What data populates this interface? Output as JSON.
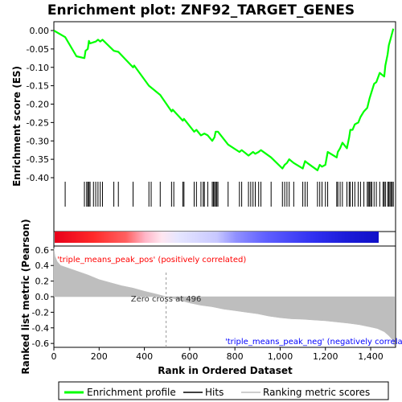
{
  "chart_data": {
    "type": "line",
    "title": "Enrichment plot: ZNF92_TARGET_GENES",
    "xlabel": "Rank in Ordered Dataset",
    "ylabel_top": "Enrichment score (ES)",
    "ylabel_bottom": "Ranked list metric (Pearson)",
    "xlim": [
      0,
      1510
    ],
    "x_ticks": [
      0,
      200,
      400,
      600,
      800,
      1000,
      1200,
      1400
    ],
    "x_tick_labels": [
      "0",
      "200",
      "400",
      "600",
      "800",
      "1,000",
      "1,200",
      "1,400"
    ],
    "es_ylim": [
      -0.4,
      0.0
    ],
    "es_ticks": [
      0.0,
      -0.05,
      -0.1,
      -0.15,
      -0.2,
      -0.25,
      -0.3,
      -0.35,
      -0.4
    ],
    "es_tick_labels": [
      "0.00",
      "-0.05",
      "-0.10",
      "-0.15",
      "-0.20",
      "-0.25",
      "-0.30",
      "-0.35",
      "-0.40"
    ],
    "metric_ylim": [
      -0.65,
      0.65
    ],
    "metric_ticks": [
      0.6,
      0.4,
      0.2,
      0.0,
      -0.2,
      -0.4,
      -0.6
    ],
    "metric_tick_labels": [
      "0.6",
      "0.4",
      "0.2",
      "0.0",
      "-0.2",
      "-0.4",
      "-0.6"
    ],
    "series": [
      {
        "name": "Enrichment profile",
        "color": "#00ff00",
        "x": [
          0,
          50,
          100,
          135,
          140,
          150,
          155,
          160,
          175,
          185,
          195,
          205,
          215,
          265,
          285,
          350,
          355,
          420,
          430,
          470,
          520,
          525,
          570,
          575,
          620,
          630,
          650,
          665,
          680,
          700,
          710,
          715,
          725,
          770,
          820,
          830,
          860,
          870,
          880,
          890,
          905,
          915,
          960,
          1010,
          1020,
          1030,
          1040,
          1060,
          1100,
          1110,
          1120,
          1165,
          1175,
          1185,
          1200,
          1210,
          1250,
          1255,
          1265,
          1275,
          1295,
          1305,
          1310,
          1320,
          1330,
          1345,
          1355,
          1370,
          1385,
          1395,
          1405,
          1415,
          1425,
          1440,
          1460,
          1465,
          1475,
          1480,
          1490,
          1500
        ],
        "y": [
          0.0,
          -0.018,
          -0.07,
          -0.075,
          -0.055,
          -0.05,
          -0.028,
          -0.035,
          -0.032,
          -0.03,
          -0.025,
          -0.03,
          -0.025,
          -0.055,
          -0.058,
          -0.1,
          -0.095,
          -0.15,
          -0.155,
          -0.175,
          -0.22,
          -0.215,
          -0.245,
          -0.24,
          -0.275,
          -0.27,
          -0.285,
          -0.28,
          -0.285,
          -0.3,
          -0.29,
          -0.275,
          -0.275,
          -0.31,
          -0.33,
          -0.325,
          -0.34,
          -0.335,
          -0.33,
          -0.335,
          -0.33,
          -0.325,
          -0.345,
          -0.375,
          -0.365,
          -0.36,
          -0.35,
          -0.36,
          -0.375,
          -0.355,
          -0.36,
          -0.38,
          -0.365,
          -0.37,
          -0.365,
          -0.33,
          -0.345,
          -0.33,
          -0.32,
          -0.305,
          -0.32,
          -0.29,
          -0.27,
          -0.27,
          -0.255,
          -0.25,
          -0.235,
          -0.22,
          -0.21,
          -0.185,
          -0.165,
          -0.145,
          -0.14,
          -0.115,
          -0.125,
          -0.095,
          -0.065,
          -0.04,
          -0.018,
          0.005
        ]
      },
      {
        "name": "Hits",
        "color": "#000000",
        "x": [
          50,
          135,
          145,
          150,
          155,
          160,
          175,
          185,
          195,
          205,
          215,
          265,
          285,
          350,
          420,
          430,
          470,
          520,
          530,
          570,
          575,
          620,
          630,
          650,
          660,
          665,
          680,
          700,
          705,
          710,
          715,
          720,
          725,
          770,
          820,
          830,
          860,
          870,
          880,
          890,
          905,
          915,
          960,
          1010,
          1020,
          1030,
          1040,
          1060,
          1100,
          1110,
          1120,
          1165,
          1175,
          1185,
          1200,
          1210,
          1250,
          1255,
          1265,
          1275,
          1295,
          1305,
          1310,
          1320,
          1330,
          1345,
          1355,
          1370,
          1385,
          1390,
          1395,
          1400,
          1405,
          1415,
          1425,
          1440,
          1455,
          1460,
          1465,
          1475,
          1480,
          1485,
          1490,
          1495,
          1500
        ]
      },
      {
        "name": "Ranking metric scores",
        "color": "#bebebe",
        "x": [
          0,
          5,
          15,
          30,
          60,
          100,
          150,
          200,
          250,
          300,
          350,
          400,
          450,
          496,
          550,
          600,
          650,
          700,
          750,
          800,
          850,
          900,
          950,
          1000,
          1050,
          1100,
          1150,
          1200,
          1250,
          1300,
          1350,
          1400,
          1430,
          1460,
          1480,
          1495,
          1500,
          1505
        ],
        "y": [
          0.62,
          0.52,
          0.45,
          0.4,
          0.37,
          0.33,
          0.28,
          0.22,
          0.18,
          0.14,
          0.11,
          0.07,
          0.035,
          0.0,
          -0.04,
          -0.08,
          -0.11,
          -0.13,
          -0.16,
          -0.18,
          -0.2,
          -0.22,
          -0.25,
          -0.27,
          -0.285,
          -0.29,
          -0.3,
          -0.31,
          -0.325,
          -0.34,
          -0.36,
          -0.39,
          -0.41,
          -0.45,
          -0.5,
          -0.55,
          -0.6,
          -0.63
        ]
      }
    ],
    "zero_cross_label": "Zero cross at 496",
    "zero_cross_x": 496,
    "pos_label": "'triple_means_peak_pos' (positively correlated)",
    "neg_label": "'triple_means_peak_neg' (negatively correla",
    "pos_label_color": "#ff0000",
    "neg_label_color": "#0000ff",
    "legend": {
      "placement": "bottom",
      "items": [
        "Enrichment profile",
        "Hits",
        "Ranking metric scores"
      ]
    }
  }
}
